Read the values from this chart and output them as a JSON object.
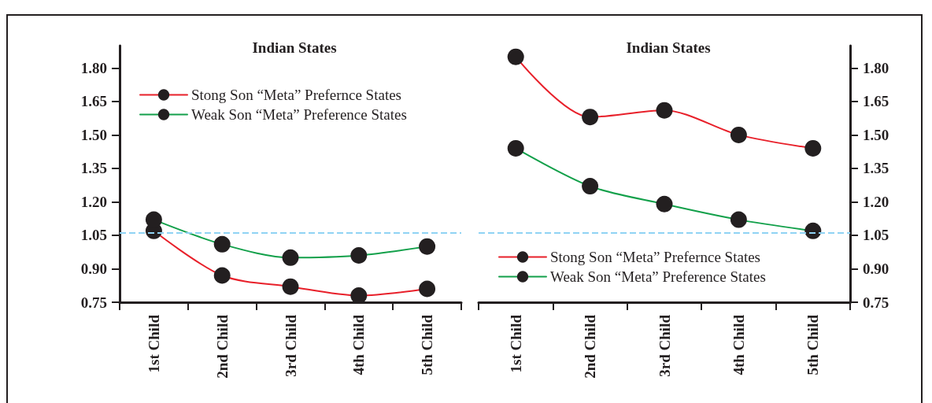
{
  "chart_data": [
    {
      "type": "line",
      "title": "Indian States",
      "categories": [
        "1st Child",
        "2nd Child",
        "3rd Child",
        "4th Child",
        "5th Child"
      ],
      "series": [
        {
          "name": "Stong Son “Meta” Prefernce States",
          "color": "#e8202a",
          "values": [
            1.07,
            0.87,
            0.82,
            0.78,
            0.81
          ]
        },
        {
          "name": "Weak Son “Meta” Preference States",
          "color": "#12a04a",
          "values": [
            1.12,
            1.01,
            0.95,
            0.96,
            1.0
          ]
        }
      ],
      "ylim": [
        0.75,
        1.9
      ],
      "yticks": [
        {
          "value": 0.75,
          "label": "0.75"
        },
        {
          "value": 0.9,
          "label": "0.90"
        },
        {
          "value": 1.05,
          "label": "1.05"
        },
        {
          "value": 1.2,
          "label": "1.20"
        },
        {
          "value": 1.35,
          "label": "1.35"
        },
        {
          "value": 1.5,
          "label": "1.50"
        },
        {
          "value": 1.65,
          "label": "1.65"
        },
        {
          "value": 1.8,
          "label": "1.80"
        }
      ],
      "ref_lines": [
        {
          "axis": "y",
          "value": 1.06,
          "color": "#8fd3f4",
          "line_style": "dashed"
        }
      ],
      "legend": "top left",
      "marker": "circle",
      "grid": false
    },
    {
      "type": "line",
      "title": "Indian States",
      "categories": [
        "1st Child",
        "2nd Child",
        "3rd Child",
        "4th Child",
        "5th Child"
      ],
      "series": [
        {
          "name": "Stong Son “Meta” Prefernce States",
          "color": "#e8202a",
          "values": [
            1.85,
            1.58,
            1.61,
            1.5,
            1.44
          ]
        },
        {
          "name": "Weak Son “Meta” Preference States",
          "color": "#12a04a",
          "values": [
            1.44,
            1.27,
            1.19,
            1.12,
            1.07
          ]
        }
      ],
      "ylim": [
        0.75,
        1.9
      ],
      "yticks": [
        {
          "value": 0.75,
          "label": "0.75"
        },
        {
          "value": 0.9,
          "label": "0.90"
        },
        {
          "value": 1.05,
          "label": "1.05"
        },
        {
          "value": 1.2,
          "label": "1.20"
        },
        {
          "value": 1.35,
          "label": "1.35"
        },
        {
          "value": 1.5,
          "label": "1.50"
        },
        {
          "value": 1.65,
          "label": "1.65"
        },
        {
          "value": 1.8,
          "label": "1.80"
        }
      ],
      "ref_lines": [
        {
          "axis": "y",
          "value": 1.06,
          "color": "#8fd3f4",
          "line_style": "dashed"
        }
      ],
      "legend": "bottom left",
      "marker": "circle",
      "grid": false
    }
  ]
}
